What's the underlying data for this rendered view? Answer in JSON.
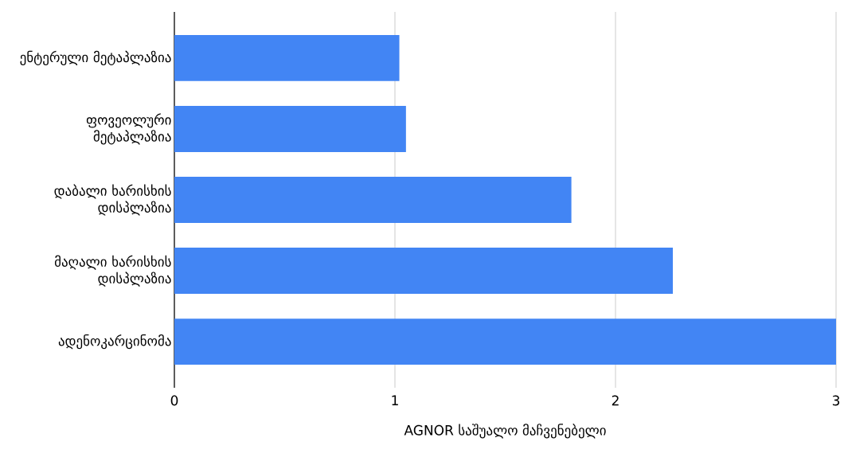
{
  "chart_data": {
    "type": "bar",
    "orientation": "horizontal",
    "xlabel": "AGNOR საშუალო მაჩვენებელი",
    "categories": [
      "ენტერული მეტაპლაზია",
      "ფოვეოლური მეტაპლაზია",
      "დაბალი ხარისხის დისპლაზია",
      "მაღალი ხარისხის დისპლაზია",
      "ადენოკარცინომა"
    ],
    "values": [
      1.02,
      1.05,
      1.8,
      2.26,
      3.0
    ],
    "color": "#4285f4",
    "xlim": [
      0,
      3
    ],
    "xticks": [
      0,
      1,
      2,
      3
    ],
    "grid": "x"
  }
}
